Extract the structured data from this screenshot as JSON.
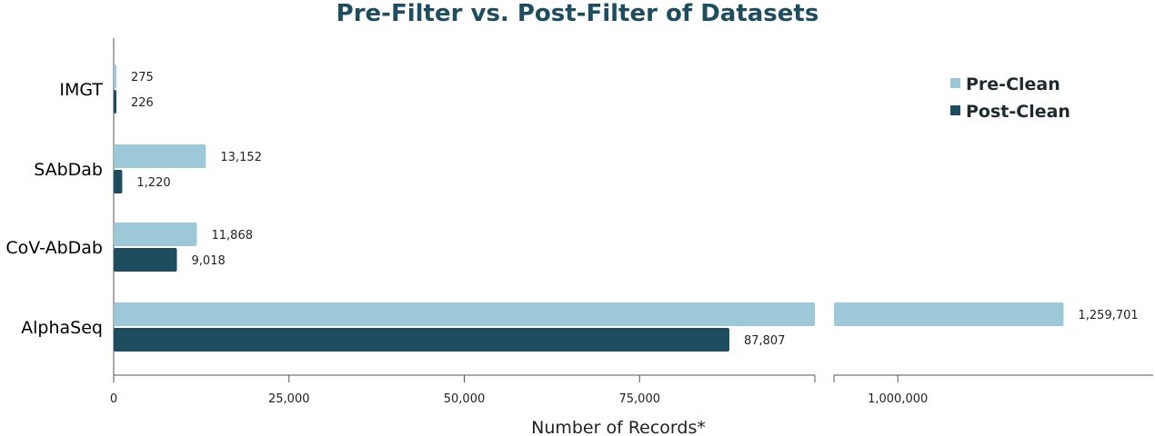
{
  "chart_data": {
    "type": "bar",
    "orientation": "horizontal",
    "title": "Pre-Filter vs. Post-Filter of Datasets",
    "xlabel": "Number of Records*",
    "ylabel": "",
    "categories": [
      "IMGT",
      "SAbDab",
      "CoV-AbDab",
      "AlphaSeq"
    ],
    "series": [
      {
        "name": "Pre-Clean",
        "color": "#9dc8d8",
        "values": [
          275,
          13152,
          11868,
          1259701
        ],
        "labels": [
          "275",
          "13,152",
          "11,868",
          "1,259,701"
        ]
      },
      {
        "name": "Post-Clean",
        "color": "#1e4d60",
        "values": [
          226,
          1220,
          9018,
          87807
        ],
        "labels": [
          "226",
          "1,220",
          "9,018",
          "87,807"
        ]
      }
    ],
    "axis_break": true,
    "segments": [
      {
        "range": [
          0,
          100000
        ],
        "ticks": [
          0,
          25000,
          50000,
          75000
        ],
        "tick_labels": [
          "0",
          "25,000",
          "50,000",
          "75,000"
        ]
      },
      {
        "range": [
          900000,
          1400000
        ],
        "ticks": [
          1000000
        ],
        "tick_labels": [
          "1,000,000"
        ]
      }
    ],
    "grid": false,
    "legend_position": "top-right",
    "title_color": "#1e4d60"
  }
}
